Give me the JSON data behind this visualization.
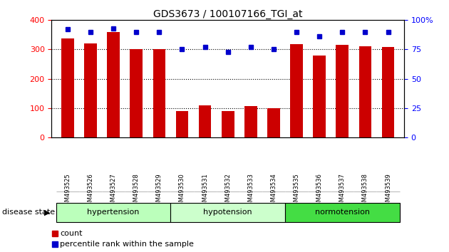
{
  "title": "GDS3673 / 100107166_TGI_at",
  "samples": [
    "GSM493525",
    "GSM493526",
    "GSM493527",
    "GSM493528",
    "GSM493529",
    "GSM493530",
    "GSM493531",
    "GSM493532",
    "GSM493533",
    "GSM493534",
    "GSM493535",
    "GSM493536",
    "GSM493537",
    "GSM493538",
    "GSM493539"
  ],
  "counts": [
    338,
    320,
    360,
    300,
    300,
    90,
    110,
    90,
    107,
    100,
    317,
    280,
    315,
    310,
    308
  ],
  "percentiles": [
    92,
    90,
    93,
    90,
    90,
    75,
    77,
    73,
    77,
    75,
    90,
    86,
    90,
    90,
    90
  ],
  "groups": [
    {
      "name": "hypertension",
      "indices": [
        0,
        1,
        2,
        3,
        4
      ],
      "color": "#bbffbb"
    },
    {
      "name": "hypotension",
      "indices": [
        5,
        6,
        7,
        8,
        9
      ],
      "color": "#ccffcc"
    },
    {
      "name": "normotension",
      "indices": [
        10,
        11,
        12,
        13,
        14
      ],
      "color": "#44dd44"
    }
  ],
  "bar_color": "#cc0000",
  "dot_color": "#0000cc",
  "left_ylim": [
    0,
    400
  ],
  "right_ylim": [
    0,
    100
  ],
  "left_yticks": [
    0,
    100,
    200,
    300,
    400
  ],
  "right_yticks": [
    0,
    25,
    50,
    75,
    100
  ],
  "right_yticklabels": [
    "0",
    "25",
    "50",
    "75",
    "100%"
  ],
  "grid_values": [
    100,
    200,
    300
  ],
  "legend_items": [
    {
      "label": "count",
      "color": "#cc0000"
    },
    {
      "label": "percentile rank within the sample",
      "color": "#0000cc"
    }
  ],
  "disease_state_label": "disease state",
  "bar_width": 0.55
}
